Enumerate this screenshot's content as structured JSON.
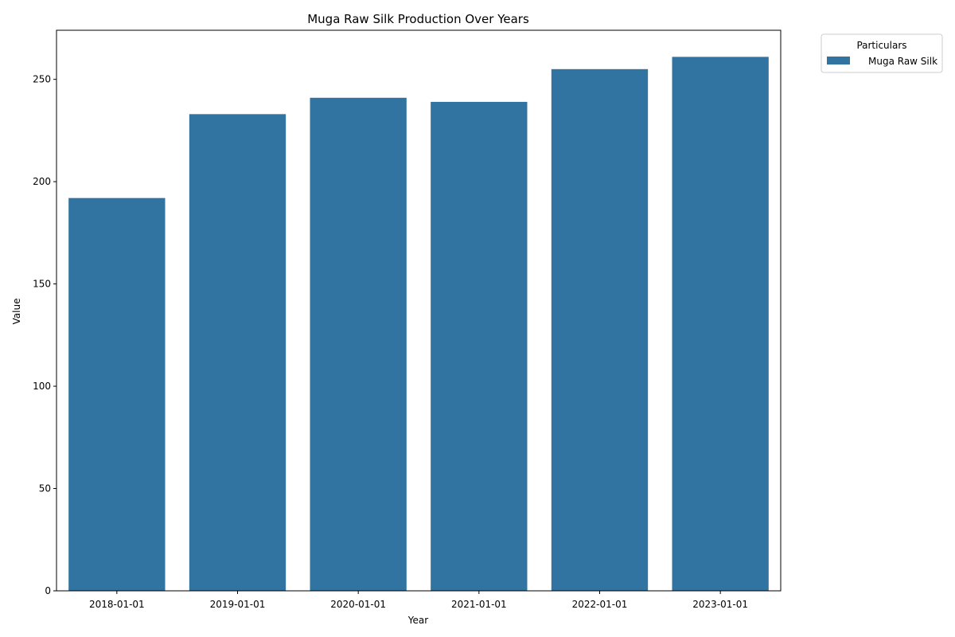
{
  "chart_data": {
    "type": "bar",
    "title": "Muga Raw Silk Production Over Years",
    "xlabel": "Year",
    "ylabel": "Value",
    "categories": [
      "2018-01-01",
      "2019-01-01",
      "2020-01-01",
      "2021-01-01",
      "2022-01-01",
      "2023-01-01"
    ],
    "series": [
      {
        "name": "Muga Raw Silk",
        "values": [
          192,
          233,
          241,
          239,
          255,
          261
        ],
        "color": "#3274a1"
      }
    ],
    "ylim": [
      0,
      274
    ],
    "yticks": [
      0,
      50,
      100,
      150,
      200,
      250
    ],
    "grid": false,
    "legend": {
      "title": "Particulars",
      "placement": "outside-top-right"
    }
  }
}
